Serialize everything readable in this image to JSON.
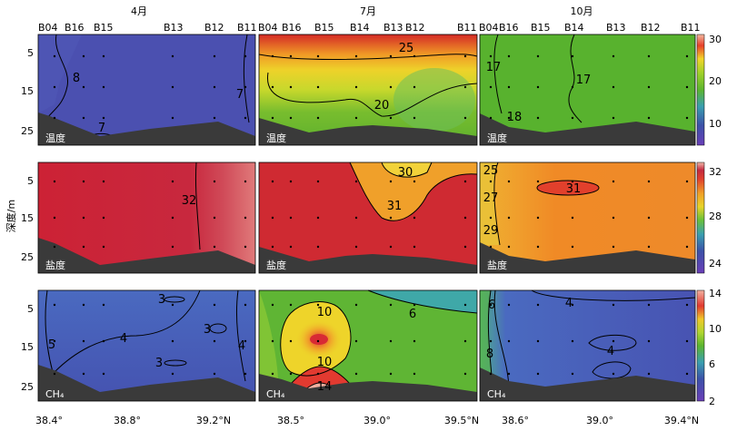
{
  "figure": {
    "ylabel": "深度/m",
    "month_labels": [
      "4月",
      "7月",
      "10月"
    ],
    "variables": [
      "温度",
      "盐度",
      "CH₄"
    ],
    "station_rows": [
      [
        "B04",
        "B16",
        "B15",
        "B13",
        "B12",
        "B11"
      ],
      [
        "B04",
        "B16",
        "B15",
        "B14",
        "B13",
        "B12",
        "B11"
      ],
      [
        "B04",
        "B16",
        "B15",
        "B14",
        "B13",
        "B12",
        "B11"
      ]
    ],
    "y_ticks": [
      "5",
      "15",
      "25"
    ],
    "x_ticks": [
      [
        "38.4°",
        "38.8°",
        "39.2°N"
      ],
      [
        "38.5°",
        "39.0°",
        "39.5°N"
      ],
      [
        "38.6°",
        "39.0°",
        "39.4°N"
      ]
    ],
    "colorbars": [
      {
        "var": "温度",
        "ticks": [
          "30",
          "20",
          "10"
        ],
        "range": [
          5,
          31
        ]
      },
      {
        "var": "盐度",
        "ticks": [
          "32",
          "28",
          "24"
        ],
        "range": [
          24,
          33
        ]
      },
      {
        "var": "CH₄",
        "ticks": [
          "14",
          "10",
          "6",
          "2"
        ],
        "range": [
          2,
          14
        ]
      }
    ],
    "colors": {
      "land": "#3a3a3a",
      "contour": "#000000"
    }
  },
  "chart_data": [
    {
      "type": "heatmap",
      "month": "4月",
      "variable": "温度",
      "contour_labels": [
        "8",
        "7",
        "7"
      ],
      "approx_value": 7.5
    },
    {
      "type": "heatmap",
      "month": "7月",
      "variable": "温度",
      "contour_labels": [
        "25",
        "20"
      ],
      "approx_range": [
        14,
        29
      ]
    },
    {
      "type": "heatmap",
      "month": "10月",
      "variable": "温度",
      "contour_labels": [
        "17",
        "17",
        "18"
      ],
      "approx_value": 17.5
    },
    {
      "type": "heatmap",
      "month": "4月",
      "variable": "盐度",
      "contour_labels": [
        "32"
      ],
      "approx_range": [
        31.5,
        32.5
      ]
    },
    {
      "type": "heatmap",
      "month": "7月",
      "variable": "盐度",
      "contour_labels": [
        "30",
        "31"
      ],
      "approx_range": [
        29.5,
        32
      ]
    },
    {
      "type": "heatmap",
      "month": "10月",
      "variable": "盐度",
      "contour_labels": [
        "25",
        "27",
        "29",
        "31"
      ],
      "approx_range": [
        24.5,
        31.5
      ]
    },
    {
      "type": "heatmap",
      "month": "4月",
      "variable": "CH₄",
      "contour_labels": [
        "3",
        "3",
        "3",
        "4",
        "5",
        "4"
      ],
      "approx_range": [
        3,
        5
      ]
    },
    {
      "type": "heatmap",
      "month": "7月",
      "variable": "CH₄",
      "contour_labels": [
        "10",
        "6",
        "10",
        "14"
      ],
      "approx_range": [
        5,
        14
      ]
    },
    {
      "type": "heatmap",
      "month": "10月",
      "variable": "CH₄",
      "contour_labels": [
        "6",
        "8",
        "4",
        "4"
      ],
      "approx_range": [
        3,
        8
      ]
    }
  ]
}
